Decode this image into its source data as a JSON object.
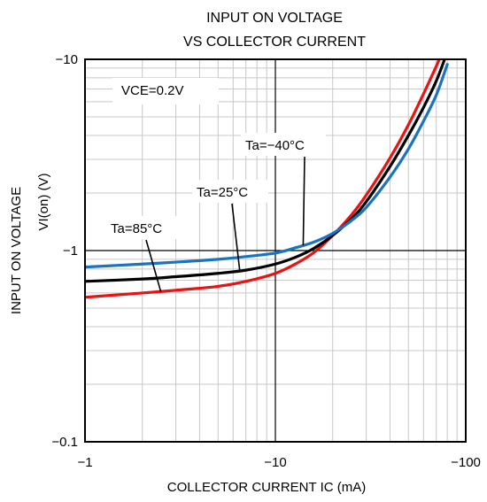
{
  "chart_data": {
    "type": "line",
    "title_lines": [
      "INPUT ON VOLTAGE",
      "VS COLLECTOR CURRENT"
    ],
    "xlabel": "COLLECTOR CURRENT  IC (mA)",
    "ylabel_lines": [
      "INPUT ON VOLTAGE",
      "VI(on) (V)"
    ],
    "x_scale": "log",
    "y_scale": "log",
    "xlim": [
      -1,
      -100
    ],
    "ylim": [
      -0.1,
      -10
    ],
    "x_ticks": [
      {
        "value": -1,
        "label": "−1"
      },
      {
        "value": -10,
        "label": "−10"
      },
      {
        "value": -100,
        "label": "−100"
      }
    ],
    "y_ticks": [
      {
        "value": -0.1,
        "label": "−0.1"
      },
      {
        "value": -1,
        "label": "−1"
      },
      {
        "value": -10,
        "label": "−10"
      }
    ],
    "grid": true,
    "condition_label": "VCE=0.2V",
    "series": [
      {
        "name": "Ta=85°C",
        "color": "#ee1111",
        "x": [
          -1,
          -2,
          -3,
          -5,
          -7,
          -10,
          -13,
          -16,
          -20,
          -25,
          -30,
          -40,
          -50,
          -60,
          -70,
          -75
        ],
        "y": [
          -0.57,
          -0.6,
          -0.62,
          -0.65,
          -0.69,
          -0.76,
          -0.86,
          -0.98,
          -1.2,
          -1.53,
          -1.95,
          -3.05,
          -4.55,
          -6.6,
          -9.2,
          -10.8
        ]
      },
      {
        "name": "Ta=25°C",
        "color": "#000000",
        "x": [
          -1,
          -2,
          -3,
          -5,
          -7,
          -10,
          -13,
          -16,
          -20,
          -25,
          -30,
          -40,
          -50,
          -60,
          -70,
          -78
        ],
        "y": [
          -0.69,
          -0.71,
          -0.73,
          -0.76,
          -0.79,
          -0.85,
          -0.93,
          -1.03,
          -1.2,
          -1.46,
          -1.8,
          -2.75,
          -4.0,
          -5.6,
          -7.7,
          -10.2
        ]
      },
      {
        "name": "Ta=−40°C",
        "color": "#1a73c0",
        "x": [
          -1,
          -2,
          -3,
          -5,
          -7,
          -10,
          -13,
          -16,
          -20,
          -25,
          -30,
          -40,
          -50,
          -60,
          -70,
          -80
        ],
        "y": [
          -0.82,
          -0.85,
          -0.87,
          -0.9,
          -0.93,
          -0.97,
          -1.04,
          -1.11,
          -1.23,
          -1.43,
          -1.68,
          -2.42,
          -3.4,
          -4.75,
          -6.5,
          -9.4
        ]
      }
    ],
    "annotations": [
      {
        "text": "Ta=85°C",
        "series": 0,
        "x": -2.5
      },
      {
        "text": "Ta=25°C",
        "series": 1,
        "x": -6.5
      },
      {
        "text": "Ta=−40°C",
        "series": 2,
        "x": -14
      }
    ]
  }
}
